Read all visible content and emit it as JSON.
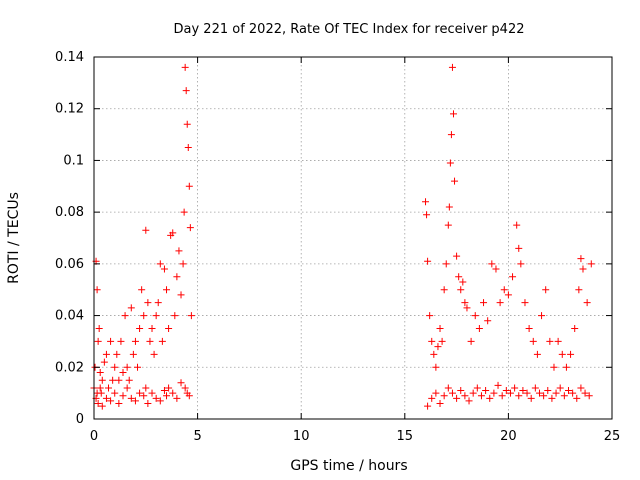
{
  "chart_data": {
    "type": "scatter",
    "title": "Day 221 of 2022, Rate Of TEC Index for receiver p422",
    "xlabel": "GPS time / hours",
    "ylabel": "ROTI / TECUs",
    "xlim": [
      0,
      25
    ],
    "ylim": [
      0,
      0.14
    ],
    "xticks": [
      0,
      5,
      10,
      15,
      20,
      25
    ],
    "yticks": [
      0,
      0.02,
      0.04,
      0.06,
      0.08,
      0.1,
      0.12,
      0.14
    ],
    "grid": true,
    "marker": "+",
    "color": "#ff0000",
    "series": [
      {
        "x": [
          0.0,
          0.05,
          0.1,
          0.15,
          0.2,
          0.25,
          0.3,
          0.35,
          0.4,
          0.5,
          0.6,
          0.7,
          0.8,
          0.9,
          1.0,
          1.1,
          1.2,
          1.3,
          1.4,
          1.5,
          1.6,
          1.7,
          1.8,
          1.9,
          2.0,
          2.1,
          2.2,
          2.3,
          2.4,
          2.5,
          2.6,
          2.7,
          2.8,
          2.9,
          3.0,
          3.1,
          3.2,
          3.3,
          3.4,
          3.5,
          3.6,
          3.7,
          3.8,
          3.9,
          4.0,
          4.1,
          4.2,
          4.3,
          4.35,
          4.4,
          4.45,
          4.5,
          4.55,
          4.6,
          4.65,
          4.7,
          0.1,
          0.15,
          0.2,
          0.3,
          0.4,
          0.6,
          0.8,
          1.0,
          1.2,
          1.4,
          1.6,
          1.8,
          2.0,
          2.2,
          2.4,
          2.5,
          2.6,
          2.8,
          3.0,
          3.2,
          3.4,
          3.5,
          3.6,
          3.8,
          4.0,
          4.2,
          4.4,
          4.5,
          4.6,
          16.0,
          16.05,
          16.1,
          16.2,
          16.3,
          16.4,
          16.5,
          16.6,
          16.7,
          16.8,
          16.9,
          17.0,
          17.1,
          17.15,
          17.2,
          17.25,
          17.3,
          17.35,
          17.4,
          17.5,
          17.6,
          17.7,
          17.8,
          17.9,
          18.0,
          18.2,
          18.4,
          18.6,
          18.8,
          19.0,
          19.2,
          19.4,
          19.6,
          19.8,
          20.0,
          20.2,
          20.4,
          20.5,
          20.6,
          20.8,
          21.0,
          21.2,
          21.4,
          21.6,
          21.8,
          22.0,
          22.2,
          22.4,
          22.6,
          22.8,
          23.0,
          23.2,
          23.4,
          23.5,
          23.6,
          23.8,
          24.0,
          16.1,
          16.3,
          16.5,
          16.7,
          16.9,
          17.1,
          17.3,
          17.5,
          17.7,
          17.9,
          18.1,
          18.3,
          18.5,
          18.7,
          18.9,
          19.1,
          19.3,
          19.5,
          19.7,
          19.9,
          20.1,
          20.3,
          20.5,
          20.7,
          20.9,
          21.1,
          21.3,
          21.5,
          21.7,
          21.9,
          22.1,
          22.3,
          22.5,
          22.7,
          22.9,
          23.1,
          23.3,
          23.5,
          23.7,
          23.9
        ],
        "y": [
          0.012,
          0.02,
          0.061,
          0.05,
          0.03,
          0.035,
          0.018,
          0.01,
          0.015,
          0.022,
          0.025,
          0.012,
          0.03,
          0.015,
          0.02,
          0.025,
          0.015,
          0.03,
          0.018,
          0.04,
          0.02,
          0.015,
          0.043,
          0.025,
          0.03,
          0.02,
          0.035,
          0.05,
          0.04,
          0.073,
          0.045,
          0.03,
          0.035,
          0.025,
          0.04,
          0.045,
          0.06,
          0.03,
          0.058,
          0.05,
          0.035,
          0.071,
          0.072,
          0.04,
          0.055,
          0.065,
          0.048,
          0.06,
          0.08,
          0.136,
          0.127,
          0.114,
          0.105,
          0.09,
          0.074,
          0.04,
          0.008,
          0.01,
          0.006,
          0.012,
          0.005,
          0.008,
          0.007,
          0.01,
          0.006,
          0.009,
          0.012,
          0.008,
          0.007,
          0.01,
          0.009,
          0.012,
          0.006,
          0.01,
          0.008,
          0.007,
          0.011,
          0.009,
          0.012,
          0.01,
          0.008,
          0.014,
          0.012,
          0.01,
          0.009,
          0.084,
          0.079,
          0.061,
          0.04,
          0.03,
          0.025,
          0.02,
          0.028,
          0.035,
          0.03,
          0.05,
          0.06,
          0.075,
          0.082,
          0.099,
          0.11,
          0.136,
          0.118,
          0.092,
          0.063,
          0.055,
          0.05,
          0.053,
          0.045,
          0.043,
          0.03,
          0.04,
          0.035,
          0.045,
          0.038,
          0.06,
          0.058,
          0.045,
          0.05,
          0.048,
          0.055,
          0.075,
          0.066,
          0.06,
          0.045,
          0.035,
          0.03,
          0.025,
          0.04,
          0.05,
          0.03,
          0.02,
          0.03,
          0.025,
          0.02,
          0.025,
          0.035,
          0.05,
          0.062,
          0.058,
          0.045,
          0.06,
          0.005,
          0.008,
          0.01,
          0.006,
          0.009,
          0.012,
          0.01,
          0.008,
          0.011,
          0.009,
          0.007,
          0.01,
          0.012,
          0.009,
          0.011,
          0.008,
          0.01,
          0.013,
          0.009,
          0.011,
          0.01,
          0.012,
          0.009,
          0.011,
          0.01,
          0.008,
          0.012,
          0.01,
          0.009,
          0.011,
          0.008,
          0.01,
          0.012,
          0.009,
          0.011,
          0.01,
          0.008,
          0.012,
          0.01,
          0.009
        ]
      }
    ]
  }
}
